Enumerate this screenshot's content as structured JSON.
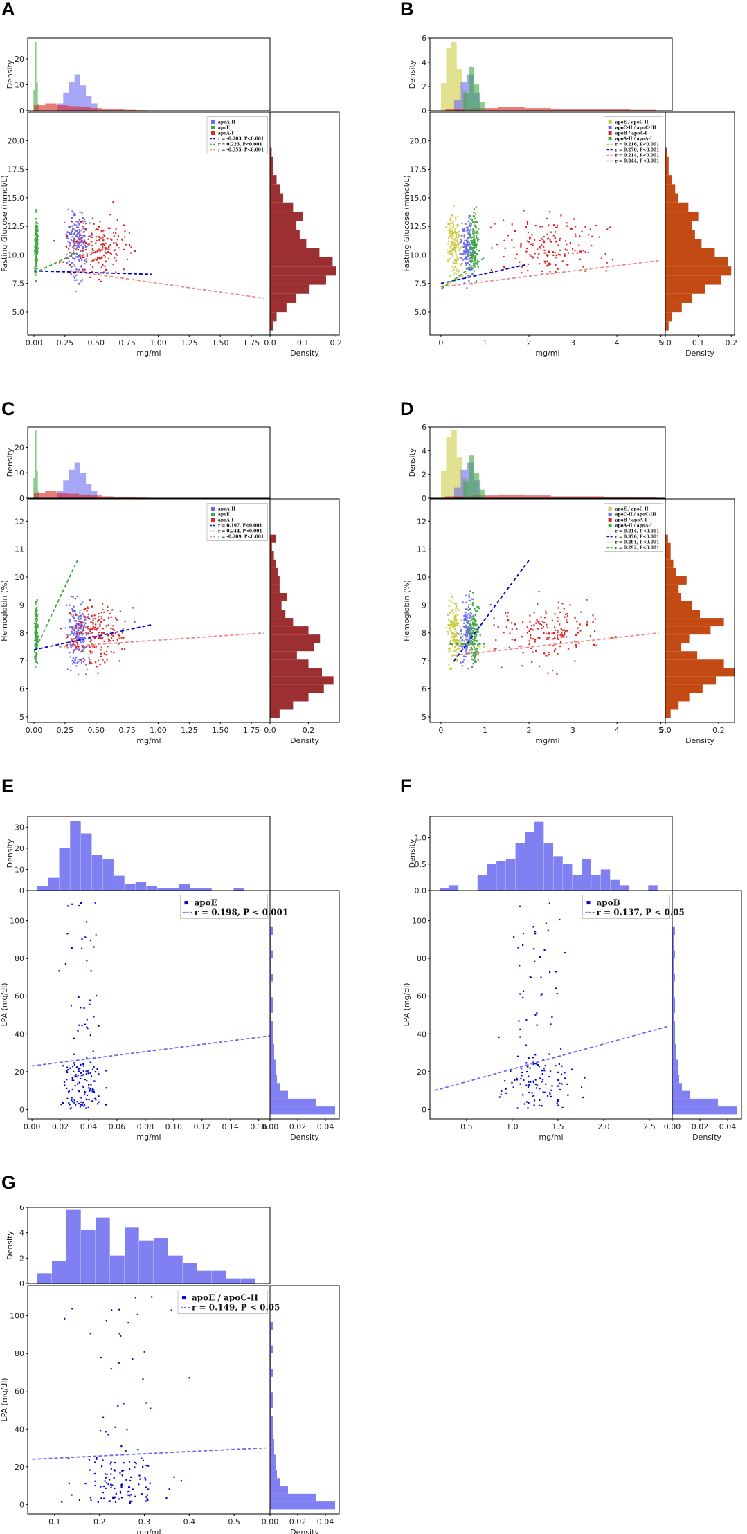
{
  "colors": {
    "blue": "#6a6af0",
    "green": "#3fa83f",
    "red": "#dd2222",
    "yellow": "#cccc44",
    "darkred": "#9b2f32",
    "orange": "#c44a14",
    "navy": "#0000cc",
    "salmon": "#ef8a84"
  },
  "chart_data": [
    {
      "panel_label": "A",
      "type": "scatter",
      "xlabel": "mg/ml",
      "ylabel": "Fasting Glucose (mmol/L)",
      "xlim": [
        -0.05,
        1.9
      ],
      "ylim": [
        3,
        22.5
      ],
      "xticks": [
        "0.00",
        "0.25",
        "0.50",
        "0.75",
        "1.00",
        "1.25",
        "1.50",
        "1.75"
      ],
      "yticks": [
        "5.0",
        "7.5",
        "10.0",
        "12.5",
        "15.0",
        "17.5",
        "20.0"
      ],
      "top_hist": {
        "ylabel": "Density",
        "yticks": [
          "0",
          "10",
          "20"
        ],
        "ylim": [
          0,
          28
        ]
      },
      "right_hist": {
        "xlabel": "Density",
        "xticks": [
          "0.0",
          "0.1",
          "0.2"
        ],
        "xlim": [
          0,
          0.21
        ],
        "color": "darkred",
        "values": [
          0.01,
          0.02,
          0.05,
          0.08,
          0.12,
          0.17,
          0.2,
          0.19,
          0.15,
          0.11,
          0.09,
          0.08,
          0.1,
          0.07,
          0.04,
          0.03,
          0.02,
          0.01,
          0.01,
          0.005
        ]
      },
      "legend": {
        "markers": [
          "apoA-II",
          "apoE",
          "apoA-I"
        ],
        "lines": [
          "r = -0.203,  P<0.001",
          "r = 0.223,  P<0.001",
          "r = -0.355,  P<0.001"
        ]
      },
      "series": [
        {
          "name": "apoA-II",
          "color": "blue",
          "center": 0.35,
          "spread": 0.08,
          "n": 180,
          "trend": [
            [
              0.0,
              8.6
            ],
            [
              0.95,
              8.3
            ]
          ],
          "trend_color": "navy",
          "hist": [
            0.2,
            0.5,
            0.8,
            1.0,
            0.7,
            0.4,
            0.2
          ]
        },
        {
          "name": "apoE",
          "color": "green",
          "center": 0.02,
          "spread": 0.012,
          "n": 150,
          "trend": [
            [
              0.0,
              8.4
            ],
            [
              0.35,
              10.2
            ]
          ],
          "trend_color": "green",
          "hist": [
            0.3,
            1.0,
            0.4,
            0.1
          ]
        },
        {
          "name": "apoA-I",
          "color": "red",
          "center": 0.5,
          "spread": 0.25,
          "n": 200,
          "trend": [
            [
              0.3,
              8.6
            ],
            [
              1.85,
              6.2
            ]
          ],
          "trend_color": "salmon",
          "hist": [
            0.3,
            0.4,
            0.3,
            0.25,
            0.2,
            0.15,
            0.1,
            0.08,
            0.05,
            0.03,
            0.02
          ]
        }
      ]
    },
    {
      "panel_label": "B",
      "type": "scatter",
      "xlabel": "mg/ml",
      "ylabel": "Fasting Glucose (mmol/L)",
      "xlim": [
        -0.25,
        5.1
      ],
      "ylim": [
        3,
        22.5
      ],
      "xticks": [
        "0",
        "1",
        "2",
        "3",
        "4",
        "5"
      ],
      "yticks": [
        "5.0",
        "7.5",
        "10.0",
        "12.5",
        "15.0",
        "17.5",
        "20.0"
      ],
      "top_hist": {
        "ylabel": "Density",
        "yticks": [
          "0",
          "2",
          "4",
          "6"
        ],
        "ylim": [
          0,
          6
        ]
      },
      "right_hist": {
        "xlabel": "Density",
        "xticks": [
          "0.0",
          "0.1",
          "0.2"
        ],
        "xlim": [
          0,
          0.21
        ],
        "color": "orange",
        "values": [
          0.01,
          0.02,
          0.05,
          0.08,
          0.12,
          0.17,
          0.2,
          0.19,
          0.15,
          0.11,
          0.09,
          0.08,
          0.1,
          0.07,
          0.04,
          0.03,
          0.02,
          0.01,
          0.01,
          0.005
        ]
      },
      "legend": {
        "markers": [
          "apoE / apoC-II",
          "apoC-II / apoC-III",
          "apoB / apoA-I",
          "apoA-II / apoA-I"
        ],
        "lines": [
          "r = 0.216,  P<0.001",
          "r = 0.270,  P<0.001",
          "r = 0.214,  P<0.001",
          "r = 0.244,  P<0.001"
        ]
      },
      "series": [
        {
          "name": "apoE / apoC-II",
          "color": "yellow",
          "center": 0.3,
          "spread": 0.15,
          "n": 160,
          "trend": [
            [
              0.0,
              7.2
            ],
            [
              0.6,
              8.4
            ]
          ],
          "trend_color": "yellow",
          "hist": [
            0.4,
            0.9,
            1.0,
            0.6,
            0.3
          ]
        },
        {
          "name": "apoC-II / apoC-III",
          "color": "blue",
          "center": 0.6,
          "spread": 0.15,
          "n": 150,
          "trend": [
            [
              0.0,
              7.5
            ],
            [
              2.0,
              9.2
            ]
          ],
          "trend_color": "navy",
          "hist": [
            0.3,
            0.8,
            1.0,
            0.5
          ]
        },
        {
          "name": "apoB / apoA-I",
          "color": "red",
          "center": 2.5,
          "spread": 1.2,
          "n": 170,
          "trend": [
            [
              0.0,
              7.2
            ],
            [
              4.95,
              9.5
            ]
          ],
          "trend_color": "salmon",
          "hist": [
            0.1,
            0.15,
            0.2,
            0.15,
            0.1,
            0.1,
            0.08,
            0.05
          ]
        },
        {
          "name": "apoA-II / apoA-I",
          "color": "green",
          "center": 0.75,
          "spread": 0.12,
          "n": 140,
          "trend": [
            [
              0.0,
              7.0
            ],
            [
              1.0,
              9.8
            ]
          ],
          "trend_color": "green",
          "hist": [
            0.4,
            1.0,
            0.6,
            0.2
          ]
        }
      ]
    },
    {
      "panel_label": "C",
      "type": "scatter",
      "xlabel": "mg/ml",
      "ylabel": "Hemoglobin (%)",
      "xlim": [
        -0.05,
        1.9
      ],
      "ylim": [
        4.8,
        12.8
      ],
      "xticks": [
        "0.00",
        "0.25",
        "0.50",
        "0.75",
        "1.00",
        "1.25",
        "1.50",
        "1.75"
      ],
      "yticks": [
        "5",
        "6",
        "7",
        "8",
        "9",
        "10",
        "11",
        "12"
      ],
      "top_hist": {
        "ylabel": "Density",
        "yticks": [
          "0",
          "10",
          "20"
        ],
        "ylim": [
          0,
          28
        ]
      },
      "right_hist": {
        "xlabel": "Density",
        "xticks": [
          "0.0",
          "0.2"
        ],
        "xlim": [
          0,
          0.36
        ],
        "color": "darkred",
        "values": [
          0.05,
          0.12,
          0.2,
          0.28,
          0.33,
          0.27,
          0.2,
          0.14,
          0.23,
          0.26,
          0.2,
          0.12,
          0.08,
          0.06,
          0.09,
          0.05,
          0.05,
          0.04,
          0.03,
          0.02,
          0.01,
          0.03
        ]
      },
      "legend": {
        "markers": [
          "apoA-II",
          "apoE",
          "apoA-I"
        ],
        "lines": [
          "r = 0.197,  P<0.001",
          "r = 0.244,  P<0.001",
          "r = -0.209,  P<0.001"
        ]
      },
      "series": [
        {
          "name": "apoA-II",
          "color": "blue",
          "center": 0.35,
          "spread": 0.08,
          "n": 180,
          "trend": [
            [
              0.0,
              7.4
            ],
            [
              0.95,
              8.3
            ]
          ],
          "trend_color": "navy",
          "hist": [
            0.2,
            0.5,
            0.8,
            1.0,
            0.7,
            0.4,
            0.2
          ]
        },
        {
          "name": "apoE",
          "color": "green",
          "center": 0.02,
          "spread": 0.012,
          "n": 150,
          "trend": [
            [
              0.0,
              7.3
            ],
            [
              0.35,
              10.6
            ]
          ],
          "trend_color": "green",
          "hist": [
            0.3,
            1.0,
            0.4,
            0.1
          ]
        },
        {
          "name": "apoA-I",
          "color": "red",
          "center": 0.5,
          "spread": 0.25,
          "n": 200,
          "trend": [
            [
              0.2,
              7.5
            ],
            [
              1.85,
              8.0
            ]
          ],
          "trend_color": "salmon",
          "hist": [
            0.3,
            0.4,
            0.3,
            0.25,
            0.2,
            0.15,
            0.1,
            0.08,
            0.05,
            0.03,
            0.02
          ]
        }
      ]
    },
    {
      "panel_label": "D",
      "type": "scatter",
      "xlabel": "mg/ml",
      "ylabel": "Hemoglobin (%)",
      "xlim": [
        -0.25,
        5.1
      ],
      "ylim": [
        4.8,
        12.8
      ],
      "xticks": [
        "0",
        "1",
        "2",
        "3",
        "4",
        "5"
      ],
      "yticks": [
        "5",
        "6",
        "7",
        "8",
        "9",
        "10",
        "11",
        "12"
      ],
      "top_hist": {
        "ylabel": "Density",
        "yticks": [
          "0",
          "2",
          "4",
          "6"
        ],
        "ylim": [
          0,
          6
        ]
      },
      "right_hist": {
        "xlabel": "Density",
        "xticks": [
          "0.0",
          "0.2"
        ],
        "xlim": [
          0,
          0.26
        ],
        "color": "orange",
        "values": [
          0.02,
          0.05,
          0.09,
          0.14,
          0.19,
          0.26,
          0.22,
          0.12,
          0.06,
          0.09,
          0.17,
          0.22,
          0.13,
          0.1,
          0.06,
          0.05,
          0.08,
          0.04,
          0.03,
          0.02,
          0.02,
          0.01
        ]
      },
      "legend": {
        "markers": [
          "apoE / apoC-II",
          "apoC-II / apoC-III",
          "apoB / apoA-I",
          "apoA-II / apoA-I"
        ],
        "lines": [
          "r = 0.214,  P<0.001",
          "r = 0.376,  P<0.001",
          "r = 0.281,  P<0.001",
          "r = 0.292,  P<0.001"
        ]
      },
      "series": [
        {
          "name": "apoE / apoC-II",
          "color": "yellow",
          "center": 0.3,
          "spread": 0.15,
          "n": 160,
          "trend": [
            [
              0.2,
              7.6
            ],
            [
              1.0,
              7.5
            ]
          ],
          "trend_color": "yellow",
          "hist": [
            0.4,
            0.9,
            1.0,
            0.6,
            0.3
          ]
        },
        {
          "name": "apoC-II / apoC-III",
          "color": "blue",
          "center": 0.6,
          "spread": 0.15,
          "n": 150,
          "trend": [
            [
              0.3,
              7.0
            ],
            [
              2.0,
              10.6
            ]
          ],
          "trend_color": "navy",
          "hist": [
            0.3,
            0.8,
            1.0,
            0.5
          ]
        },
        {
          "name": "apoB / apoA-I",
          "color": "red",
          "center": 2.5,
          "spread": 1.2,
          "n": 170,
          "trend": [
            [
              0.3,
              7.2
            ],
            [
              4.95,
              8.0
            ]
          ],
          "trend_color": "salmon",
          "hist": [
            0.1,
            0.15,
            0.2,
            0.15,
            0.1,
            0.1,
            0.08,
            0.05
          ]
        },
        {
          "name": "apoA-II / apoA-I",
          "color": "green",
          "center": 0.75,
          "spread": 0.12,
          "n": 140,
          "trend": [
            [
              0.2,
              7.6
            ],
            [
              1.0,
              7.6
            ]
          ],
          "trend_color": "green",
          "hist": [
            0.4,
            1.0,
            0.6,
            0.2
          ]
        }
      ]
    },
    {
      "panel_label": "E",
      "type": "scatter",
      "xlabel": "mg/ml",
      "ylabel": "LPA (mg/dl)",
      "xlim": [
        -0.003,
        0.168
      ],
      "ylim": [
        -5,
        116
      ],
      "xticks": [
        "0.00",
        "0.02",
        "0.04",
        "0.06",
        "0.08",
        "0.10",
        "0.12",
        "0.14",
        "0.16"
      ],
      "yticks": [
        "0",
        "20",
        "40",
        "60",
        "80",
        "100"
      ],
      "top_hist": {
        "ylabel": "Density",
        "yticks": [
          "0",
          "10",
          "20",
          "30"
        ],
        "ylim": [
          0,
          35
        ],
        "values": [
          2,
          6,
          20,
          33,
          27,
          17,
          15,
          7,
          3,
          4,
          2,
          1,
          1,
          3,
          1,
          1,
          0,
          0,
          1,
          0
        ]
      },
      "right_hist": {
        "xlabel": "Density",
        "xticks": [
          "0.00",
          "0.02",
          "0.04"
        ],
        "xlim": [
          0,
          0.05
        ],
        "color": "blue",
        "values": [
          0.047,
          0.033,
          0.013,
          0.007,
          0.005,
          0.004,
          0.004,
          0.003,
          0.003,
          0.002,
          0.002,
          0.002,
          0.001,
          0.002,
          0.002,
          0.001,
          0.001,
          0.002,
          0.001,
          0.001,
          0.002,
          0.001,
          0.001,
          0.002
        ]
      },
      "legend": {
        "markers": [
          "apoE"
        ],
        "lines": [
          "r = 0.198, P < 0.001"
        ]
      },
      "series": [
        {
          "name": "apoE",
          "color": "navy",
          "center": 0.035,
          "spread": 0.015,
          "n": 150,
          "trend": [
            [
              0.0,
              23
            ],
            [
              0.168,
              39
            ]
          ],
          "trend_color": "blue"
        }
      ]
    },
    {
      "panel_label": "F",
      "type": "scatter",
      "xlabel": "mg/ml",
      "ylabel": "LPA (mg/dl)",
      "xlim": [
        0.1,
        2.75
      ],
      "ylim": [
        -5,
        116
      ],
      "xticks": [
        "0.5",
        "1.0",
        "1.5",
        "2.0",
        "2.5"
      ],
      "yticks": [
        "0",
        "20",
        "40",
        "60",
        "80",
        "100"
      ],
      "top_hist": {
        "ylabel": "Density",
        "yticks": [
          "0.0",
          "0.5",
          "1.0"
        ],
        "ylim": [
          0,
          1.4
        ],
        "values": [
          0.05,
          0.1,
          0.0,
          0.0,
          0.3,
          0.5,
          0.55,
          0.6,
          0.9,
          1.1,
          1.3,
          0.9,
          0.65,
          0.5,
          0.3,
          0.6,
          0.3,
          0.4,
          0.2,
          0.1,
          0.0,
          0.0,
          0.1
        ]
      },
      "right_hist": {
        "xlabel": "Density",
        "xticks": [
          "0.00",
          "0.02",
          "0.04"
        ],
        "xlim": [
          0,
          0.05
        ],
        "color": "blue",
        "values": [
          0.047,
          0.033,
          0.013,
          0.007,
          0.005,
          0.004,
          0.004,
          0.003,
          0.003,
          0.002,
          0.002,
          0.002,
          0.001,
          0.002,
          0.002,
          0.001,
          0.001,
          0.002,
          0.001,
          0.001,
          0.002,
          0.001,
          0.001,
          0.002
        ]
      },
      "legend": {
        "markers": [
          "apoB"
        ],
        "lines": [
          "r = 0.137, P < 0.05"
        ]
      },
      "series": [
        {
          "name": "apoB",
          "color": "navy",
          "center": 1.3,
          "spread": 0.4,
          "n": 150,
          "trend": [
            [
              0.15,
              10
            ],
            [
              2.7,
              44
            ]
          ],
          "trend_color": "blue"
        }
      ]
    },
    {
      "panel_label": "G",
      "type": "scatter",
      "xlabel": "mg/ml",
      "ylabel": "LPA (mg/dl)",
      "xlim": [
        0.04,
        0.58
      ],
      "ylim": [
        -5,
        116
      ],
      "xticks": [
        "0.1",
        "0.2",
        "0.3",
        "0.4",
        "0.5"
      ],
      "yticks": [
        "0",
        "20",
        "40",
        "60",
        "80",
        "100"
      ],
      "top_hist": {
        "ylabel": "Density",
        "yticks": [
          "0",
          "2",
          "4",
          "6"
        ],
        "ylim": [
          0,
          6
        ],
        "values": [
          0.8,
          1.8,
          5.8,
          4.2,
          5.2,
          2.2,
          4.4,
          3.4,
          3.6,
          2.2,
          1.6,
          1.0,
          1.0,
          0.4,
          0.4
        ]
      },
      "right_hist": {
        "xlabel": "Density",
        "xticks": [
          "0.00",
          "0.02",
          "0.04"
        ],
        "xlim": [
          0,
          0.05
        ],
        "color": "blue",
        "values": [
          0.047,
          0.033,
          0.013,
          0.007,
          0.005,
          0.004,
          0.004,
          0.003,
          0.003,
          0.002,
          0.002,
          0.002,
          0.001,
          0.002,
          0.002,
          0.001,
          0.001,
          0.002,
          0.001,
          0.001,
          0.002,
          0.001,
          0.001,
          0.002
        ]
      },
      "legend": {
        "markers": [
          "apoE / apoC-II"
        ],
        "lines": [
          "r = 0.149, P < 0.05"
        ]
      },
      "series": [
        {
          "name": "apoE / apoC-II",
          "color": "navy",
          "center": 0.25,
          "spread": 0.1,
          "n": 140,
          "trend": [
            [
              0.05,
              24
            ],
            [
              0.57,
              30
            ]
          ],
          "trend_color": "blue"
        }
      ]
    }
  ]
}
